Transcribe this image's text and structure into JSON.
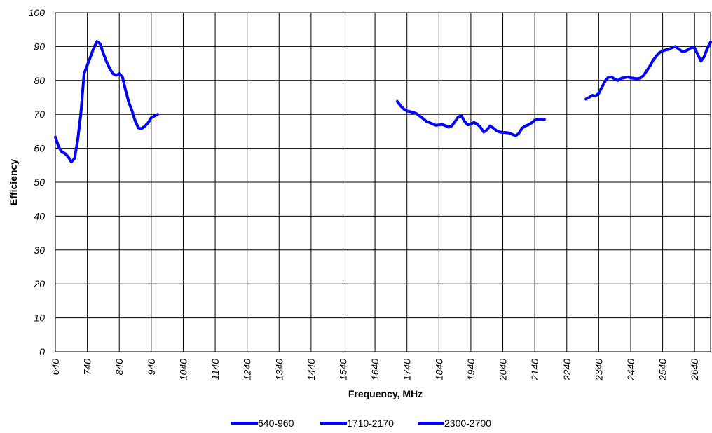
{
  "chart_data": {
    "type": "line",
    "title": "",
    "xlabel": "Frequency, MHz",
    "ylabel": "Efficiency",
    "xlim": [
      640,
      2690
    ],
    "ylim": [
      0,
      100
    ],
    "xticks": [
      640,
      740,
      840,
      940,
      1040,
      1140,
      1240,
      1340,
      1440,
      1540,
      1640,
      1740,
      1840,
      1940,
      2040,
      2140,
      2240,
      2340,
      2440,
      2540,
      2640
    ],
    "yticks": [
      0,
      10,
      20,
      30,
      40,
      50,
      60,
      70,
      80,
      90,
      100
    ],
    "grid": true,
    "legend_position": "bottom",
    "series_color": "#0000ff",
    "series": [
      {
        "name": "640-960",
        "x": [
          640,
          650,
          660,
          670,
          680,
          690,
          700,
          710,
          720,
          730,
          740,
          750,
          760,
          770,
          780,
          790,
          800,
          810,
          820,
          830,
          840,
          850,
          860,
          870,
          880,
          890,
          900,
          910,
          920,
          930,
          940,
          950,
          960
        ],
        "y": [
          63.3,
          60.5,
          58.9,
          58.5,
          57.5,
          56.0,
          57.0,
          62.5,
          70.5,
          82.0,
          84.5,
          87.0,
          89.5,
          91.5,
          90.8,
          88.0,
          85.5,
          83.5,
          82.0,
          81.5,
          82.0,
          81.0,
          77.0,
          73.5,
          71.0,
          68.0,
          66.0,
          65.8,
          66.5,
          67.5,
          69.0,
          69.5,
          70.0
        ]
      },
      {
        "name": "1710-2170",
        "x": [
          1710,
          1720,
          1730,
          1740,
          1750,
          1760,
          1770,
          1780,
          1790,
          1800,
          1810,
          1820,
          1830,
          1840,
          1850,
          1860,
          1870,
          1880,
          1890,
          1900,
          1910,
          1920,
          1930,
          1940,
          1950,
          1960,
          1970,
          1980,
          1990,
          2000,
          2010,
          2020,
          2030,
          2040,
          2050,
          2060,
          2070,
          2080,
          2090,
          2100,
          2110,
          2120,
          2130,
          2140,
          2150,
          2160,
          2170
        ],
        "y": [
          73.8,
          72.5,
          71.6,
          71.0,
          70.8,
          70.6,
          70.2,
          69.5,
          68.8,
          68.0,
          67.6,
          67.2,
          66.8,
          66.9,
          67.0,
          66.7,
          66.2,
          66.6,
          67.8,
          69.2,
          69.6,
          68.0,
          66.9,
          67.2,
          67.6,
          67.1,
          66.2,
          64.8,
          65.4,
          66.6,
          66.0,
          65.2,
          64.8,
          64.7,
          64.6,
          64.5,
          64.1,
          63.7,
          64.4,
          65.9,
          66.6,
          66.9,
          67.5,
          68.3,
          68.6,
          68.6,
          68.5
        ]
      },
      {
        "name": "2300-2700",
        "x": [
          2300,
          2310,
          2320,
          2330,
          2340,
          2350,
          2360,
          2370,
          2380,
          2390,
          2400,
          2410,
          2420,
          2430,
          2440,
          2450,
          2460,
          2470,
          2480,
          2490,
          2500,
          2510,
          2520,
          2530,
          2540,
          2550,
          2560,
          2570,
          2580,
          2590,
          2600,
          2610,
          2620,
          2630,
          2640,
          2650,
          2660,
          2670,
          2680,
          2690
        ],
        "y": [
          74.5,
          75.0,
          75.6,
          75.4,
          76.2,
          78.0,
          79.8,
          80.9,
          81.0,
          80.4,
          80.0,
          80.6,
          80.8,
          81.0,
          80.8,
          80.6,
          80.5,
          80.7,
          81.4,
          82.8,
          84.2,
          85.9,
          87.2,
          88.2,
          88.7,
          89.0,
          89.2,
          89.7,
          90.0,
          89.3,
          88.6,
          88.6,
          89.1,
          89.7,
          89.6,
          87.6,
          85.7,
          87.0,
          89.5,
          91.3
        ]
      }
    ]
  }
}
